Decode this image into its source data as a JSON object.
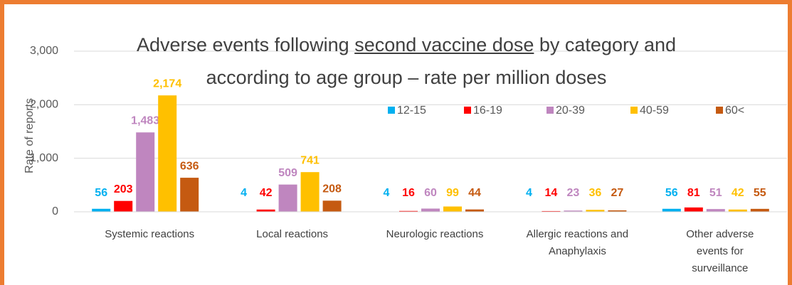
{
  "chart_data": {
    "type": "bar",
    "title": [
      "Adverse events following",
      "second vaccine dose",
      "by category and according to age group – rate per million doses"
    ],
    "ylabel": "Rate of reports",
    "categories": [
      "Systemic reactions",
      "Local reactions",
      "Neurologic reactions",
      "Allergic reactions and Anaphylaxis",
      "Other adverse events for surveillance"
    ],
    "series": [
      {
        "name": "12-15",
        "color": "#00b0f0",
        "values": [
          56,
          4,
          4,
          4,
          56
        ]
      },
      {
        "name": "16-19",
        "color": "#ff0000",
        "values": [
          203,
          42,
          16,
          14,
          81
        ]
      },
      {
        "name": "20-39",
        "color": "#bf86bf",
        "values": [
          1483,
          509,
          60,
          23,
          51
        ],
        "value_labels": [
          "1,483",
          "509",
          "60",
          "23",
          "51"
        ]
      },
      {
        "name": "40-59",
        "color": "#ffc000",
        "values": [
          2174,
          741,
          99,
          36,
          42
        ],
        "value_labels": [
          "2,174",
          "741",
          "99",
          "36",
          "42"
        ]
      },
      {
        "name": "60<",
        "color": "#c55a11",
        "values": [
          636,
          208,
          44,
          27,
          55
        ]
      }
    ],
    "ylim": [
      0,
      3000
    ],
    "yticks": [
      0,
      {
        "value": 1000,
        "label": "1,000"
      },
      {
        "value": 2000,
        "label": "2,000"
      },
      {
        "value": 3000,
        "label": "3,000"
      }
    ],
    "grid": true,
    "legend": "top-right"
  }
}
